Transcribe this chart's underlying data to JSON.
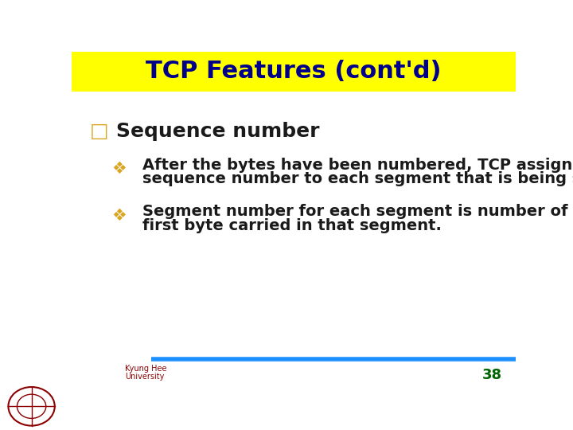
{
  "title": "TCP Features (cont'd)",
  "title_bg": "#FFFF00",
  "title_color": "#00008B",
  "title_fontsize": 22,
  "bg_color": "#FFFFFF",
  "bullet1_label": "□",
  "bullet1_text": "Sequence number",
  "bullet1_color": "#1a1a1a",
  "bullet1_label_color": "#DAA520",
  "sub_bullet_symbol": "❖",
  "sub_bullet_color": "#DAA520",
  "sub1_line1": "After the bytes have been numbered, TCP assigns a",
  "sub1_line2": "sequence number to each segment that is being sent.",
  "sub2_line1": "Segment number for each segment is number of the",
  "sub2_line2": "first byte carried in that segment.",
  "text_color": "#1a1a1a",
  "footer_line_color": "#1E90FF",
  "footer_num": "38",
  "footer_num_color": "#006400",
  "footer_text_color": "#8B0000"
}
